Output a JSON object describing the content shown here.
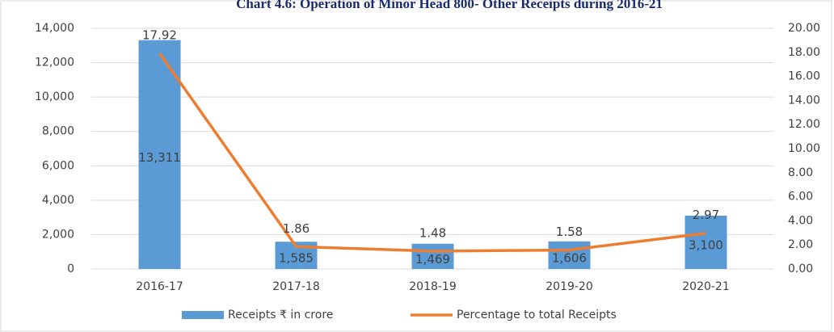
{
  "chart_data": {
    "type": "combo",
    "title": "Chart 4.6: Operation of Minor Head 800- Other Receipts during 2016-21",
    "categories": [
      "2016-17",
      "2017-18",
      "2018-19",
      "2019-20",
      "2020-21"
    ],
    "series": [
      {
        "name": "Receipts ₹ in crore",
        "type": "bar",
        "color": "#5b9bd5",
        "axis": "y",
        "values": [
          13311,
          1585,
          1469,
          1606,
          3100
        ],
        "value_labels": [
          "13,311",
          "1,585",
          "1,469",
          "1,606",
          "3,100"
        ]
      },
      {
        "name": "Percentage to total Receipts",
        "type": "line",
        "color": "#ed7d31",
        "axis": "y2",
        "values": [
          17.92,
          1.86,
          1.48,
          1.58,
          2.97
        ]
      }
    ],
    "ylim": [
      0,
      14000
    ],
    "yticks": [
      0,
      {
        "value": 2000,
        "label": "2,000"
      },
      {
        "value": 4000,
        "label": "4,000"
      },
      {
        "value": 6000,
        "label": "6,000"
      },
      {
        "value": 8000,
        "label": "8,000"
      },
      {
        "value": 10000,
        "label": "10,000"
      },
      {
        "value": 12000,
        "label": "12,000"
      },
      {
        "value": 14000,
        "label": "14,000"
      }
    ],
    "y2lim": [
      0,
      20
    ],
    "y2ticks": [
      {
        "value": 0,
        "label": "0.00"
      },
      {
        "value": 2,
        "label": "2.00"
      },
      {
        "value": 4,
        "label": "4.00"
      },
      {
        "value": 6,
        "label": "6.00"
      },
      {
        "value": 8,
        "label": "8.00"
      },
      {
        "value": 10,
        "label": "10.00"
      },
      {
        "value": 12,
        "label": "12.00"
      },
      {
        "value": 14,
        "label": "14.00"
      },
      {
        "value": 16,
        "label": "16.00"
      },
      {
        "value": 18,
        "label": "18.00"
      },
      {
        "value": 20,
        "label": "20.00"
      }
    ],
    "grid": true,
    "legend": "bottom"
  }
}
